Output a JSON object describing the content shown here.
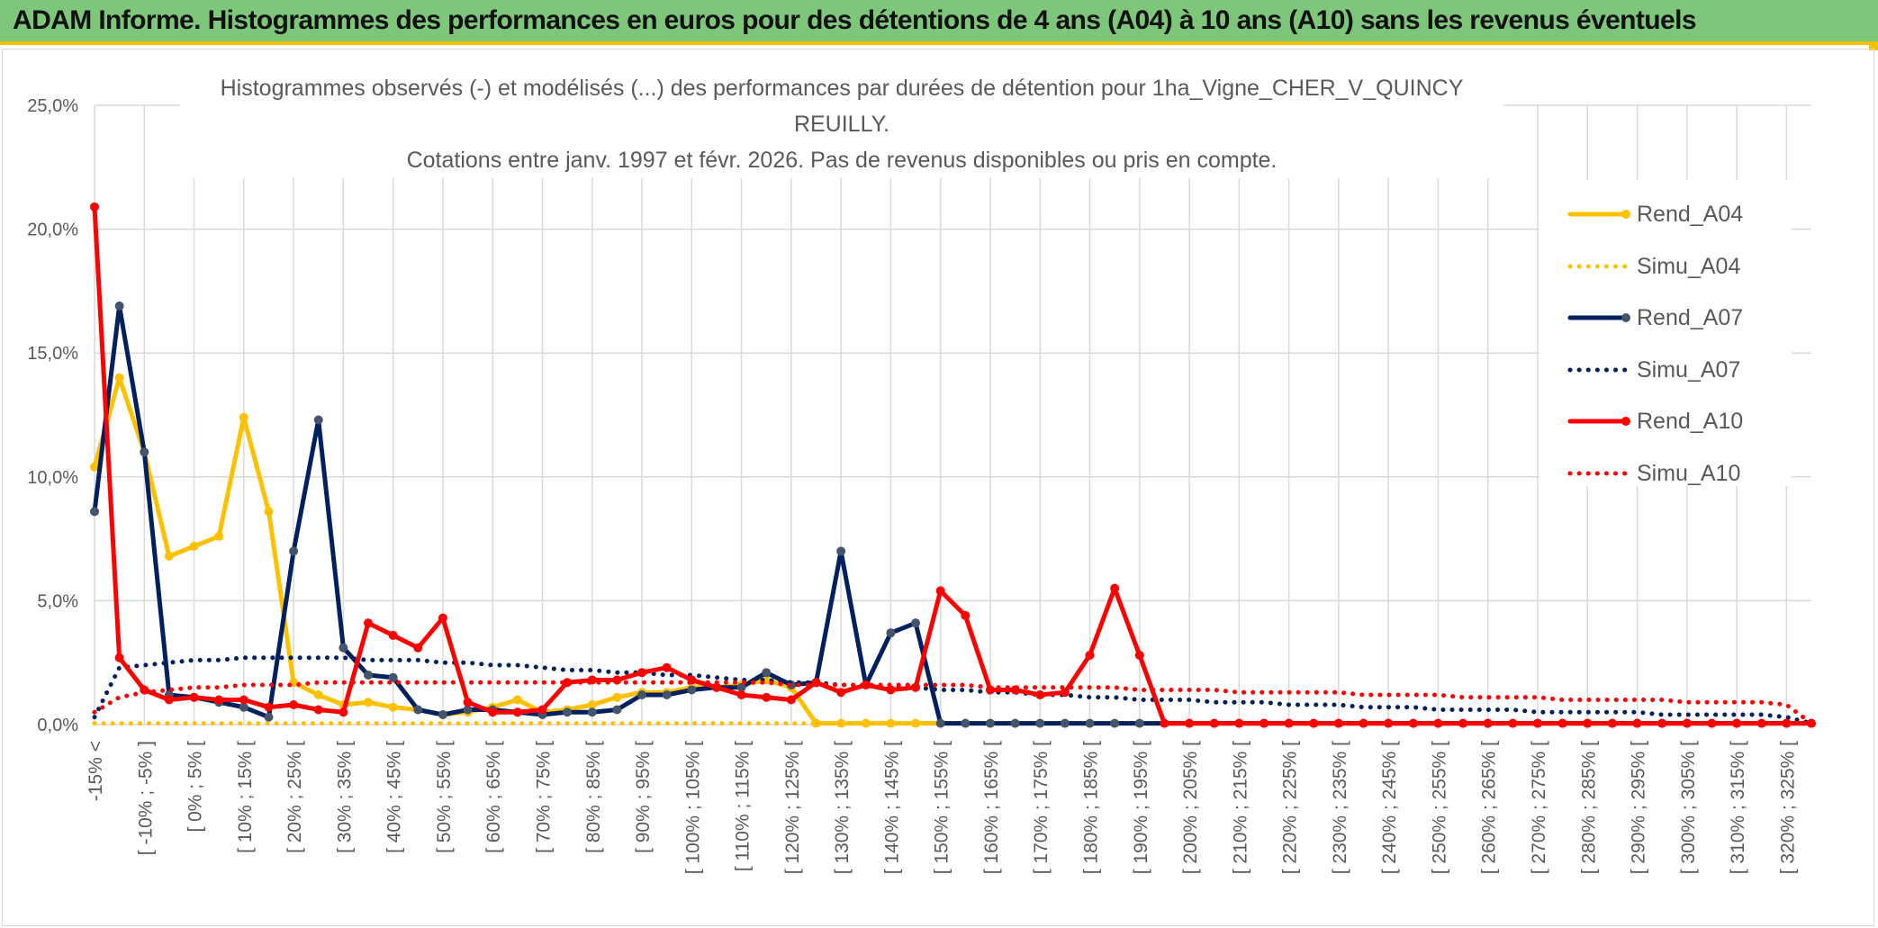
{
  "header": {
    "title": "ADAM Informe. Histogrammes des performances en euros pour des détentions de 4 ans (A04) à 10 ans (A10) sans les revenus éventuels"
  },
  "colors": {
    "header_bg": "#7dc67a",
    "accent_yellow": "#f2c200",
    "A04": "#ffc000",
    "A07": "#002060",
    "A10": "#ff0000",
    "A07_marker": "#44546a"
  },
  "chart_data": {
    "type": "line",
    "title_line1": "Histogrammes observés (-) et modélisés (...) des performances par durées de détention pour 1ha_Vigne_CHER_V_QUINCY REUILLY.",
    "title_line2": "Cotations entre janv. 1997 et févr. 2026. Pas de revenus disponibles ou pris en compte.",
    "ylim": [
      0,
      25
    ],
    "y_ticks": [
      0,
      5,
      10,
      15,
      20,
      25
    ],
    "y_tick_labels": [
      "0,0%",
      "5,0%",
      "10,0%",
      "15,0%",
      "20,0%",
      "25,0%"
    ],
    "grid": true,
    "legend_position": "right",
    "x_tick_labels": [
      "-15% <",
      "[ -10% ; -5% ]",
      "[ 0% ; 5% [",
      "[ 10% ; 15% [",
      "[ 20% ; 25% [",
      "[ 30% ; 35% [",
      "[ 40% ; 45% [",
      "[ 50% ; 55% [",
      "[ 60% ; 65% [",
      "[ 70% ; 75% [",
      "[ 80% ; 85% [",
      "[ 90% ; 95% [",
      "[ 100% ; 105% [",
      "[ 110% ; 115% [",
      "[ 120% ; 125% [",
      "[ 130% ; 135% [",
      "[ 140% ; 145% [",
      "[ 150% ; 155% [",
      "[ 160% ; 165% [",
      "[ 170% ; 175% [",
      "[ 180% ; 185% [",
      "[ 190% ; 195% [",
      "[ 200% ; 205% [",
      "[ 210% ; 215% [",
      "[ 220% ; 225% [",
      "[ 230% ; 235% [",
      "[ 240% ; 245% [",
      "[ 250% ; 255% [",
      "[ 260% ; 265% [",
      "[ 270% ; 275% [",
      "[ 280% ; 285% [",
      "[ 290% ; 295% [",
      "[ 300% ; 305% [",
      "[ 310% ; 315% [",
      "[ 320% ; 325% ["
    ],
    "series": [
      {
        "name": "Rend_A04",
        "style": "solid",
        "color": "#ffc000",
        "values": [
          10.4,
          14.0,
          11.0,
          6.8,
          7.2,
          7.6,
          12.4,
          8.6,
          1.7,
          1.2,
          0.8,
          0.9,
          0.7,
          0.6,
          0.4,
          0.5,
          0.7,
          1.0,
          0.5,
          0.6,
          0.8,
          1.1,
          1.3,
          1.3,
          1.5,
          1.5,
          1.6,
          1.8,
          1.5,
          0.05,
          0.05,
          0.05,
          0.05,
          0.05,
          0.05,
          0.05,
          0.05,
          0.05,
          0.05,
          0.05,
          0.05,
          0.05,
          0.05,
          0.05,
          0.05,
          0.05,
          0.05,
          0.05,
          0.05,
          0.05,
          0.05,
          0.05,
          0.05,
          0.05,
          0.05,
          0.05,
          0.05,
          0.05,
          0.05,
          0.05,
          0.05,
          0.05,
          0.05,
          0.05,
          0.05,
          0.05,
          0.05,
          0.05,
          0.05,
          0.05
        ]
      },
      {
        "name": "Simu_A04",
        "style": "dotted",
        "color": "#ffc000",
        "values": [
          0.05,
          0.05,
          0.05,
          0.05,
          0.05,
          0.05,
          0.05,
          0.05,
          0.05,
          0.05,
          0.05,
          0.05,
          0.05,
          0.05,
          0.05,
          0.05,
          0.05,
          0.05,
          0.05,
          0.05,
          0.05,
          0.05,
          0.05,
          0.05,
          0.05,
          0.05,
          0.05,
          0.05,
          0.05,
          0.05,
          0.05,
          0.05,
          0.05,
          0.05,
          0.05,
          0.05,
          0.05,
          0.05,
          0.05,
          0.05,
          0.05,
          0.05,
          0.05,
          0.05,
          0.05,
          0.05,
          0.05,
          0.05,
          0.05,
          0.05,
          0.05,
          0.05,
          0.05,
          0.05,
          0.05,
          0.05,
          0.05,
          0.05,
          0.05,
          0.05,
          0.05,
          0.05,
          0.05,
          0.05,
          0.05,
          0.05,
          0.05,
          0.05,
          0.05,
          0.05
        ]
      },
      {
        "name": "Rend_A07",
        "style": "solid",
        "color": "#002060",
        "values": [
          8.6,
          16.9,
          11.0,
          1.2,
          1.1,
          0.9,
          0.7,
          0.3,
          7.0,
          12.3,
          3.1,
          2.0,
          1.9,
          0.6,
          0.4,
          0.6,
          0.6,
          0.5,
          0.4,
          0.5,
          0.5,
          0.6,
          1.2,
          1.2,
          1.4,
          1.5,
          1.5,
          2.1,
          1.6,
          1.7,
          7.0,
          1.6,
          3.7,
          4.1,
          0.05,
          0.05,
          0.05,
          0.05,
          0.05,
          0.05,
          0.05,
          0.05,
          0.05,
          0.05,
          0.05,
          0.05,
          0.05,
          0.05,
          0.05,
          0.05,
          0.05,
          0.05,
          0.05,
          0.05,
          0.05,
          0.05,
          0.05,
          0.05,
          0.05,
          0.05,
          0.05,
          0.05,
          0.05,
          0.05,
          0.05,
          0.05,
          0.05,
          0.05,
          0.05,
          0.05
        ]
      },
      {
        "name": "Simu_A07",
        "style": "dotted",
        "color": "#002060",
        "values": [
          0.3,
          2.3,
          2.4,
          2.5,
          2.6,
          2.6,
          2.7,
          2.7,
          2.7,
          2.7,
          2.7,
          2.6,
          2.6,
          2.6,
          2.5,
          2.5,
          2.4,
          2.4,
          2.3,
          2.2,
          2.2,
          2.1,
          2.1,
          2.0,
          2.0,
          1.9,
          1.8,
          1.8,
          1.7,
          1.7,
          1.6,
          1.6,
          1.5,
          1.5,
          1.4,
          1.4,
          1.3,
          1.3,
          1.2,
          1.2,
          1.1,
          1.1,
          1.0,
          1.0,
          1.0,
          0.9,
          0.9,
          0.9,
          0.8,
          0.8,
          0.8,
          0.7,
          0.7,
          0.7,
          0.6,
          0.6,
          0.6,
          0.6,
          0.5,
          0.5,
          0.5,
          0.5,
          0.5,
          0.4,
          0.4,
          0.4,
          0.4,
          0.4,
          0.3,
          0.05
        ]
      },
      {
        "name": "Rend_A10",
        "style": "solid",
        "color": "#ff0000",
        "values": [
          20.9,
          2.7,
          1.4,
          1.0,
          1.1,
          1.0,
          1.0,
          0.7,
          0.8,
          0.6,
          0.5,
          4.1,
          3.6,
          3.1,
          4.3,
          0.9,
          0.5,
          0.5,
          0.6,
          1.7,
          1.8,
          1.8,
          2.1,
          2.3,
          1.8,
          1.5,
          1.2,
          1.1,
          1.0,
          1.7,
          1.3,
          1.6,
          1.4,
          1.5,
          5.4,
          4.4,
          1.4,
          1.4,
          1.2,
          1.3,
          2.8,
          5.5,
          2.8,
          0.05,
          0.05,
          0.05,
          0.05,
          0.05,
          0.05,
          0.05,
          0.05,
          0.05,
          0.05,
          0.05,
          0.05,
          0.05,
          0.05,
          0.05,
          0.05,
          0.05,
          0.05,
          0.05,
          0.05,
          0.05,
          0.05,
          0.05,
          0.05,
          0.05,
          0.05,
          0.05
        ]
      },
      {
        "name": "Simu_A10",
        "style": "dotted",
        "color": "#ff0000",
        "values": [
          0.5,
          1.1,
          1.3,
          1.4,
          1.5,
          1.5,
          1.6,
          1.6,
          1.6,
          1.7,
          1.7,
          1.7,
          1.7,
          1.7,
          1.7,
          1.7,
          1.7,
          1.7,
          1.7,
          1.7,
          1.7,
          1.7,
          1.7,
          1.7,
          1.7,
          1.7,
          1.7,
          1.7,
          1.6,
          1.6,
          1.6,
          1.6,
          1.6,
          1.6,
          1.6,
          1.6,
          1.5,
          1.5,
          1.5,
          1.5,
          1.5,
          1.5,
          1.4,
          1.4,
          1.4,
          1.4,
          1.3,
          1.3,
          1.3,
          1.3,
          1.3,
          1.2,
          1.2,
          1.2,
          1.2,
          1.1,
          1.1,
          1.1,
          1.1,
          1.0,
          1.0,
          1.0,
          1.0,
          1.0,
          0.9,
          0.9,
          0.9,
          0.9,
          0.8,
          0.05
        ]
      }
    ]
  }
}
